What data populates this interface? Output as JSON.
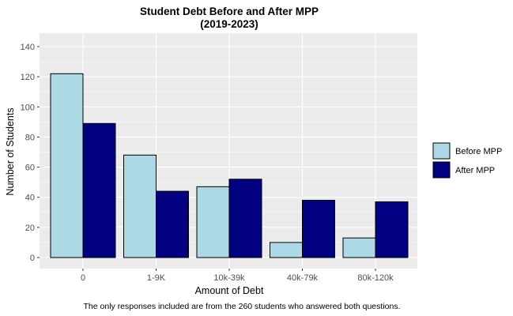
{
  "chart_data": {
    "type": "bar",
    "title": "Student Debt Before and After MPP",
    "subtitle": "(2019-2023)",
    "xlabel": "Amount of Debt",
    "ylabel": "Number of Students",
    "caption": "The only responses included are from the 260 students who answered both questions.",
    "categories": [
      "0",
      "1-9K",
      "10k-39k",
      "40k-79k",
      "80k-120k"
    ],
    "series": [
      {
        "name": "Before MPP",
        "color": "#add8e6",
        "values": [
          122,
          68,
          47,
          10,
          13
        ]
      },
      {
        "name": "After MPP",
        "color": "#000080",
        "values": [
          89,
          44,
          52,
          38,
          37
        ]
      }
    ],
    "ylim": [
      0,
      145
    ],
    "yticks": [
      0,
      20,
      40,
      60,
      80,
      100,
      120,
      140
    ],
    "grid": true,
    "legend_position": "right",
    "panel_color": "#ebebeb",
    "grid_color": "#ffffff",
    "bar_border_color": "#000000"
  }
}
